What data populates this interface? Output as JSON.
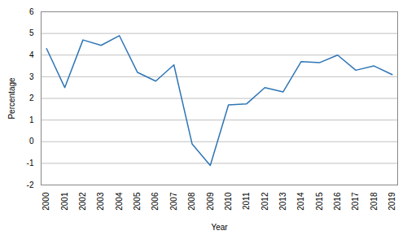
{
  "chart_data": {
    "type": "line",
    "x": [
      2000,
      2001,
      2002,
      2003,
      2004,
      2005,
      2006,
      2007,
      2008,
      2009,
      2010,
      2011,
      2012,
      2013,
      2014,
      2015,
      2016,
      2017,
      2018,
      2019
    ],
    "values": [
      4.3,
      2.5,
      4.7,
      4.45,
      4.9,
      3.2,
      2.8,
      3.55,
      -0.1,
      -1.1,
      1.7,
      1.75,
      2.5,
      2.3,
      3.7,
      3.65,
      4.0,
      3.3,
      3.5,
      3.1
    ],
    "color": "#2E75B6",
    "xlabel": "Year",
    "ylabel": "Percentage",
    "xlim": [
      1999.7,
      2019.3
    ],
    "xticks": [
      2000,
      2001,
      2002,
      2003,
      2004,
      2005,
      2006,
      2007,
      2008,
      2009,
      2010,
      2011,
      2012,
      2013,
      2014,
      2015,
      2016,
      2017,
      2018,
      2019
    ],
    "ylim": [
      -2,
      6
    ],
    "yticks": [
      -2,
      -1,
      0,
      1,
      2,
      3,
      4,
      5,
      6
    ],
    "grid": "y"
  }
}
